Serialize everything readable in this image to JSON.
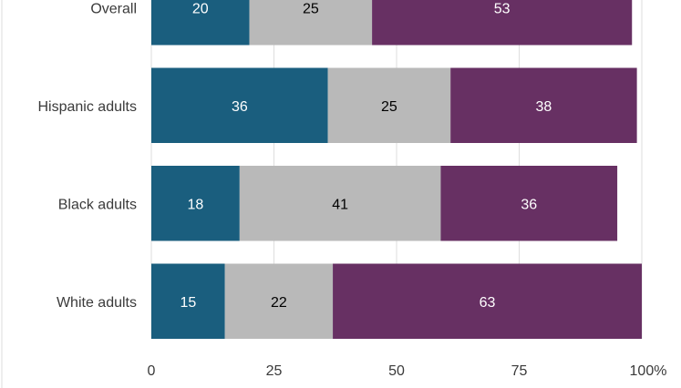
{
  "chart_data": {
    "type": "bar",
    "orientation": "horizontal",
    "stacked": true,
    "categories": [
      "Overall",
      "Hispanic adults",
      "Black adults",
      "White adults"
    ],
    "series": [
      {
        "values": [
          20,
          36,
          18,
          15
        ],
        "color": "#1a5e7e",
        "label_color": "#ffffff"
      },
      {
        "values": [
          25,
          25,
          41,
          22
        ],
        "color": "#b9b9b9",
        "label_color": "#000000"
      },
      {
        "values": [
          53,
          38,
          36,
          63
        ],
        "color": "#673063",
        "label_color": "#ffffff"
      }
    ],
    "xlim": [
      0,
      100
    ],
    "xticks": [
      0,
      25,
      50,
      75,
      100
    ],
    "xtick_labels": [
      "0",
      "25",
      "50",
      "75",
      "100%"
    ],
    "grid": true,
    "title": "",
    "xlabel": "",
    "ylabel": ""
  }
}
